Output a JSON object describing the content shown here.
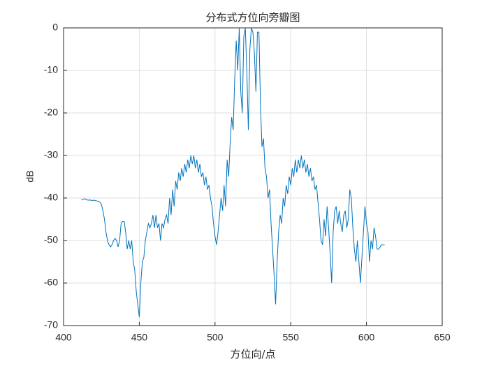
{
  "chart_data": {
    "type": "line",
    "title": "分布式方位向旁瓣图",
    "xlabel": "方位向/点",
    "ylabel": "dB",
    "xlim": [
      400,
      650
    ],
    "xticks": [
      400,
      450,
      500,
      550,
      600,
      650
    ],
    "ylim": [
      -70,
      0
    ],
    "yticks": [
      -70,
      -60,
      -50,
      -40,
      -30,
      -20,
      -10,
      0
    ],
    "grid": true,
    "x": [
      412,
      413,
      414,
      415,
      416,
      417,
      418,
      419,
      420,
      421,
      422,
      423,
      424,
      425,
      426,
      427,
      428,
      429,
      430,
      431,
      432,
      433,
      434,
      435,
      436,
      437,
      438,
      439,
      440,
      441,
      442,
      443,
      444,
      445,
      446,
      447,
      448,
      449,
      450,
      451,
      452,
      453,
      454,
      455,
      456,
      457,
      458,
      459,
      460,
      461,
      462,
      463,
      464,
      465,
      466,
      467,
      468,
      469,
      470,
      471,
      472,
      473,
      474,
      475,
      476,
      477,
      478,
      479,
      480,
      481,
      482,
      483,
      484,
      485,
      486,
      487,
      488,
      489,
      490,
      491,
      492,
      493,
      494,
      495,
      496,
      497,
      498,
      499,
      500,
      501,
      502,
      503,
      504,
      505,
      506,
      507,
      508,
      509,
      510,
      511,
      512,
      513,
      514,
      515,
      516,
      517,
      518,
      519,
      520,
      521,
      522,
      523,
      524,
      525,
      526,
      527,
      528,
      529,
      530,
      531,
      532,
      533,
      534,
      535,
      536,
      537,
      538,
      539,
      540,
      541,
      542,
      543,
      544,
      545,
      546,
      547,
      548,
      549,
      550,
      551,
      552,
      553,
      554,
      555,
      556,
      557,
      558,
      559,
      560,
      561,
      562,
      563,
      564,
      565,
      566,
      567,
      568,
      569,
      570,
      571,
      572,
      573,
      574,
      575,
      576,
      577,
      578,
      579,
      580,
      581,
      582,
      583,
      584,
      585,
      586,
      587,
      588,
      589,
      590,
      591,
      592,
      593,
      594,
      595,
      596,
      597,
      598,
      599,
      600,
      601,
      602,
      603,
      604,
      605,
      606,
      607,
      608,
      609,
      610,
      611,
      612
    ],
    "series": [
      {
        "color": "#0072bd",
        "values": [
          -40.5,
          -40.3,
          -40.2,
          -40.4,
          -40.5,
          -40.5,
          -40.5,
          -40.6,
          -40.5,
          -40.6,
          -40.7,
          -40.8,
          -41,
          -41.5,
          -43,
          -45,
          -48,
          -50,
          -51,
          -51.5,
          -51,
          -50,
          -49.5,
          -50,
          -51.5,
          -50,
          -46,
          -45.5,
          -45.5,
          -48,
          -52,
          -50,
          -52,
          -50,
          -55,
          -57,
          -62,
          -65,
          -68,
          -60,
          -55,
          -54,
          -50,
          -48,
          -46,
          -47,
          -46,
          -44,
          -47,
          -44,
          -47,
          -46,
          -50,
          -46,
          -47,
          -45,
          -44,
          -46,
          -40,
          -44,
          -38,
          -42,
          -36,
          -38,
          -34,
          -36,
          -33,
          -35,
          -32,
          -34,
          -31,
          -33,
          -30,
          -32,
          -30,
          -33,
          -31,
          -34,
          -32,
          -35,
          -34,
          -37,
          -35,
          -38,
          -37,
          -40,
          -42,
          -46,
          -49,
          -51,
          -48,
          -44,
          -40,
          -43,
          -37,
          -42,
          -31,
          -35,
          -27,
          -21,
          -24,
          -12,
          -3,
          -10,
          0,
          -15,
          -20,
          -2,
          0,
          -10,
          -24,
          -5,
          0,
          -1,
          -6,
          -15,
          -1,
          -1,
          -18,
          -28,
          -26,
          -33,
          -35,
          -40,
          -38,
          -46,
          -52,
          -58,
          -65,
          -55,
          -48,
          -44,
          -46,
          -40,
          -42,
          -37,
          -39,
          -35,
          -37,
          -33,
          -35,
          -31,
          -34,
          -31,
          -33,
          -30,
          -33,
          -31,
          -34,
          -32,
          -35,
          -33,
          -36,
          -35,
          -38,
          -37,
          -41,
          -45,
          -50,
          -51,
          -45,
          -49,
          -42,
          -47,
          -53,
          -60,
          -48,
          -43,
          -42,
          -46,
          -43,
          -46,
          -48,
          -44,
          -43,
          -47,
          -45,
          -38,
          -40,
          -47,
          -52,
          -55,
          -50,
          -55,
          -60,
          -54,
          -48,
          -42,
          -46,
          -48,
          -55,
          -50,
          -52,
          -47,
          -49,
          -52,
          -52,
          -51.5,
          -51,
          -51,
          -51
        ]
      }
    ]
  }
}
